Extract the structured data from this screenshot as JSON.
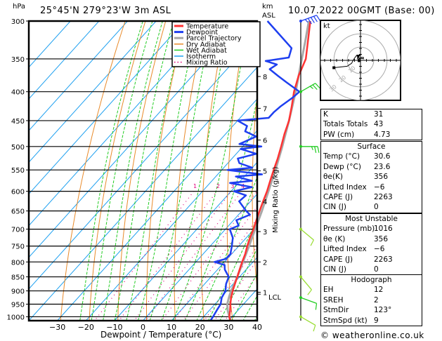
{
  "header": {
    "hpa_label": "hPa",
    "location": "25°45'N  279°23'W  3m ASL",
    "km_label": "km",
    "asl_label": "ASL",
    "datetime": "10.07.2022  00GMT  (Base: 00)"
  },
  "footer": {
    "copyright": "© weatheronline.co.uk"
  },
  "chart_data": {
    "type": "line",
    "subtype": "skew-t log-p",
    "title": "25°45'N 279°23'W 3m ASL",
    "xlabel": "Dewpoint / Temperature (°C)",
    "ylabel": "hPa",
    "y2label": "Mixing Ratio (g/kg)",
    "xlim": [
      -40,
      40
    ],
    "ylim": [
      1016,
      300
    ],
    "x_ticks": [
      -30,
      -20,
      -10,
      0,
      10,
      20,
      30,
      40
    ],
    "y_ticks": [
      300,
      350,
      400,
      450,
      500,
      550,
      600,
      650,
      700,
      750,
      800,
      850,
      900,
      950,
      1000
    ],
    "km_ticks": [
      {
        "km": "8",
        "p": 376
      },
      {
        "km": "7",
        "p": 428
      },
      {
        "km": "6",
        "p": 487
      },
      {
        "km": "5",
        "p": 552
      },
      {
        "km": "4",
        "p": 625
      },
      {
        "km": "3",
        "p": 707
      },
      {
        "km": "2",
        "p": 800
      },
      {
        "km": "1",
        "p": 905
      }
    ],
    "lcl": {
      "label": "LCL",
      "p": 912
    },
    "mixing_ratio_labels": [
      "1",
      "2",
      "3",
      "4",
      "6",
      "8",
      "10",
      "16",
      "20",
      "25"
    ],
    "mixing_ratio_label_p": 585,
    "legend": {
      "position": "top-right",
      "items": [
        {
          "name": "Temperature",
          "color": "#ff3333",
          "style": "solid"
        },
        {
          "name": "Dewpoint",
          "color": "#1e3ff0",
          "style": "solid"
        },
        {
          "name": "Parcel Trajectory",
          "color": "#a8a8a8",
          "style": "solid"
        },
        {
          "name": "Dry Adiabat",
          "color": "#e88a2a",
          "style": "solid"
        },
        {
          "name": "Wet Adiabat",
          "color": "#22cc22",
          "style": "solid"
        },
        {
          "name": "Isotherm",
          "color": "#1ea0f0",
          "style": "solid"
        },
        {
          "name": "Mixing Ratio",
          "color": "#e0007a",
          "style": "dotted"
        }
      ]
    },
    "series": [
      {
        "name": "Temperature",
        "points": [
          [
            1016,
            30.6
          ],
          [
            1000,
            29.0
          ],
          [
            975,
            27.3
          ],
          [
            950,
            25.4
          ],
          [
            925,
            23.6
          ],
          [
            900,
            22.0
          ],
          [
            875,
            20.6
          ],
          [
            850,
            19.2
          ],
          [
            825,
            17.7
          ],
          [
            800,
            16.2
          ],
          [
            775,
            14.8
          ],
          [
            750,
            13.0
          ],
          [
            725,
            11.3
          ],
          [
            700,
            9.8
          ],
          [
            675,
            8.0
          ],
          [
            650,
            6.2
          ],
          [
            625,
            4.4
          ],
          [
            600,
            2.6
          ],
          [
            575,
            0.4
          ],
          [
            550,
            -1.8
          ],
          [
            525,
            -4.0
          ],
          [
            500,
            -6.6
          ],
          [
            475,
            -9.4
          ],
          [
            450,
            -12.0
          ],
          [
            425,
            -15.5
          ],
          [
            400,
            -19.4
          ],
          [
            375,
            -22.8
          ],
          [
            350,
            -25.6
          ],
          [
            325,
            -30.6
          ],
          [
            300,
            -36.0
          ]
        ]
      },
      {
        "name": "Dewpoint",
        "points": [
          [
            1016,
            23.6
          ],
          [
            1000,
            23.3
          ],
          [
            975,
            22.6
          ],
          [
            950,
            22.0
          ],
          [
            925,
            20.3
          ],
          [
            900,
            19.5
          ],
          [
            875,
            17.5
          ],
          [
            850,
            16.2
          ],
          [
            825,
            12.5
          ],
          [
            810,
            11.0
          ],
          [
            800,
            6.5
          ],
          [
            790,
            9.5
          ],
          [
            775,
            9.6
          ],
          [
            750,
            7.6
          ],
          [
            725,
            5.3
          ],
          [
            700,
            1.5
          ],
          [
            690,
            3.5
          ],
          [
            675,
            1.0
          ],
          [
            660,
            4.0
          ],
          [
            650,
            1.5
          ],
          [
            625,
            -4.0
          ],
          [
            610,
            -3.5
          ],
          [
            600,
            -9.0
          ],
          [
            590,
            -4.0
          ],
          [
            580,
            -13.0
          ],
          [
            575,
            -6.0
          ],
          [
            565,
            -13.0
          ],
          [
            560,
            -4.5
          ],
          [
            550,
            -18.0
          ],
          [
            545,
            -10.0
          ],
          [
            535,
            -16.0
          ],
          [
            525,
            -18.0
          ],
          [
            515,
            -13.0
          ],
          [
            505,
            -20.0
          ],
          [
            500,
            -13.5
          ],
          [
            495,
            -22.0
          ],
          [
            480,
            -18.5
          ],
          [
            470,
            -24.0
          ],
          [
            460,
            -25.0
          ],
          [
            450,
            -30.0
          ],
          [
            445,
            -20.0
          ],
          [
            435,
            -20.0
          ],
          [
            425,
            -19.5
          ],
          [
            410,
            -18.0
          ],
          [
            400,
            -17.5
          ],
          [
            385,
            -25.0
          ],
          [
            375,
            -30.0
          ],
          [
            365,
            -35.0
          ],
          [
            358,
            -34.0
          ],
          [
            353,
            -39.0
          ],
          [
            348,
            -32.0
          ],
          [
            335,
            -34.0
          ],
          [
            300,
            -51.0
          ]
        ]
      },
      {
        "name": "Parcel Trajectory",
        "points": [
          [
            1016,
            30.6
          ],
          [
            975,
            26.5
          ],
          [
            950,
            24.3
          ],
          [
            925,
            22.8
          ],
          [
            912,
            22.1
          ],
          [
            900,
            21.5
          ],
          [
            850,
            19.2
          ],
          [
            800,
            16.5
          ],
          [
            750,
            13.6
          ],
          [
            700,
            10.4
          ],
          [
            650,
            7.0
          ],
          [
            600,
            3.1
          ],
          [
            550,
            -1.2
          ],
          [
            500,
            -6.2
          ],
          [
            450,
            -12.0
          ],
          [
            400,
            -18.8
          ],
          [
            350,
            -27.0
          ],
          [
            325,
            -31.5
          ],
          [
            300,
            -36.5
          ]
        ]
      }
    ]
  },
  "wind_barbs": [
    {
      "p": 300,
      "color": "#1e3ff0",
      "dir_deg": 250,
      "speed_kt": 35
    },
    {
      "p": 400,
      "color": "#22cc22",
      "dir_deg": 240,
      "speed_kt": 15
    },
    {
      "p": 500,
      "color": "#22cc22",
      "dir_deg": 270,
      "speed_kt": 15
    },
    {
      "p": 700,
      "color": "#99dd33",
      "dir_deg": 310,
      "speed_kt": 10
    },
    {
      "p": 850,
      "color": "#99dd33",
      "dir_deg": 320,
      "speed_kt": 10
    },
    {
      "p": 925,
      "color": "#22cc22",
      "dir_deg": 290,
      "speed_kt": 10
    },
    {
      "p": 1000,
      "color": "#99dd33",
      "dir_deg": 300,
      "speed_kt": 10
    }
  ],
  "hodograph": {
    "unit_label": "kt",
    "ring_labels": [
      "10",
      "20",
      "30"
    ],
    "trace_kt": [
      [
        -9,
        -4
      ],
      [
        -6,
        -2
      ],
      [
        -5,
        0
      ],
      [
        -3,
        3
      ],
      [
        -2,
        3
      ],
      [
        -2,
        1
      ],
      [
        -1,
        1
      ],
      [
        1,
        2
      ],
      [
        2,
        2
      ],
      [
        2,
        1
      ],
      [
        -2,
        2
      ]
    ],
    "outer_point_kt": [
      -18,
      -5
    ]
  },
  "indices": {
    "top": [
      {
        "label": "K",
        "value": "31"
      },
      {
        "label": "Totals Totals",
        "value": "43"
      },
      {
        "label": "PW (cm)",
        "value": "4.73"
      }
    ],
    "surface": {
      "title": "Surface",
      "rows": [
        {
          "label": "Temp (°C)",
          "value": "30.6"
        },
        {
          "label": "Dewp (°C)",
          "value": "23.6"
        },
        {
          "label": "θe(K)",
          "value": "356"
        },
        {
          "label": "Lifted Index",
          "value": "−6"
        },
        {
          "label": "CAPE (J)",
          "value": "2263"
        },
        {
          "label": "CIN (J)",
          "value": "0"
        }
      ]
    },
    "most_unstable": {
      "title": "Most Unstable",
      "rows": [
        {
          "label": "Pressure (mb)",
          "value": "1016"
        },
        {
          "label": "θe (K)",
          "value": "356"
        },
        {
          "label": "Lifted Index",
          "value": "−6"
        },
        {
          "label": "CAPE (J)",
          "value": "2263"
        },
        {
          "label": "CIN (J)",
          "value": "0"
        }
      ]
    },
    "hodograph": {
      "title": "Hodograph",
      "rows": [
        {
          "label": "EH",
          "value": "12"
        },
        {
          "label": "SREH",
          "value": "2"
        },
        {
          "label": "StmDir",
          "value": "123°"
        },
        {
          "label": "StmSpd (kt)",
          "value": "9"
        }
      ]
    }
  }
}
